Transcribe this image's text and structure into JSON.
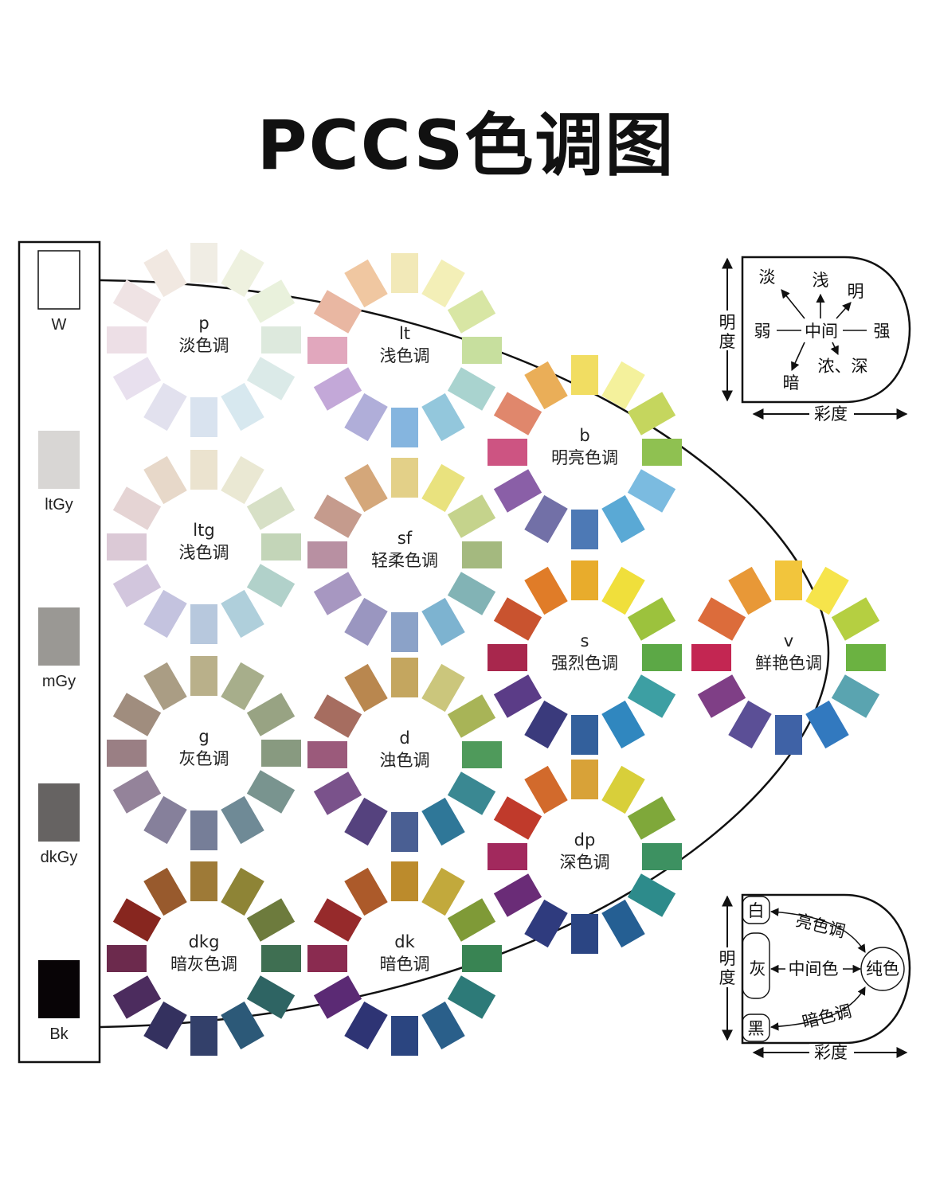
{
  "title": "PCCS色调图",
  "grayscale": [
    {
      "label": "W",
      "color": "#ffffff"
    },
    {
      "label": "ltGy",
      "color": "#d8d6d4"
    },
    {
      "label": "mGy",
      "color": "#9a9894"
    },
    {
      "label": "dkGy",
      "color": "#666362"
    },
    {
      "label": "Bk",
      "color": "#080406"
    }
  ],
  "tones": [
    {
      "code": "p",
      "name": "淡色调",
      "colors": [
        "#f0ede4",
        "#eef1df",
        "#e9f1dc",
        "#dde9dd",
        "#dbeae8",
        "#d7e8ef",
        "#d9e3ef",
        "#e2e1ee",
        "#e8e0ee",
        "#eddfe6",
        "#efe3e4",
        "#f1e8e1"
      ]
    },
    {
      "code": "lt",
      "name": "浅色调",
      "colors": [
        "#f2e9b8",
        "#f3efb7",
        "#d8e6a4",
        "#c7df9e",
        "#a9d3cf",
        "#93c7dc",
        "#85b5df",
        "#b0aed9",
        "#c3a8d8",
        "#e1a7bd",
        "#e9b7a2",
        "#f0c7a1"
      ]
    },
    {
      "code": "b",
      "name": "明亮色调",
      "colors": [
        "#f1dd62",
        "#f4f19c",
        "#c5d65e",
        "#8fc151",
        "#7bbbe0",
        "#5aa9d5",
        "#4d79b5",
        "#7270a7",
        "#8a5fa7",
        "#cd5482",
        "#e0876c",
        "#eaae58"
      ]
    },
    {
      "code": "ltg",
      "name": "浅色调",
      "colors": [
        "#ebe3cf",
        "#eae8d3",
        "#d7e0c6",
        "#c3d5b8",
        "#b1d1ca",
        "#afcfdb",
        "#b7c8dd",
        "#c4c3df",
        "#d2c6dd",
        "#dbc9d6",
        "#e5d4d4",
        "#e7d8c9"
      ]
    },
    {
      "code": "sf",
      "name": "轻柔色调",
      "colors": [
        "#e3d088",
        "#e9e27e",
        "#c5d38c",
        "#a4b97f",
        "#82b3b5",
        "#7db3d0",
        "#8ba2c8",
        "#9a96c0",
        "#a797c1",
        "#b890a2",
        "#c59b8d",
        "#d4a77a"
      ]
    },
    {
      "code": "s",
      "name": "强烈色调",
      "colors": [
        "#e8ac2c",
        "#f0df3b",
        "#9cc23d",
        "#5ca846",
        "#3d9fa3",
        "#3087bf",
        "#33609c",
        "#3a3a7c",
        "#5b3c87",
        "#a8274d",
        "#c9532f",
        "#e07c28"
      ]
    },
    {
      "code": "v",
      "name": "鲜艳色调",
      "colors": [
        "#f2c53c",
        "#f6e44b",
        "#b5cf41",
        "#6bb241",
        "#5aa4b0",
        "#3279bf",
        "#3f62a6",
        "#5b4f96",
        "#7f3f86",
        "#c32652",
        "#dc6c3b",
        "#e89837"
      ]
    },
    {
      "code": "g",
      "name": "灰色调",
      "colors": [
        "#b9b08a",
        "#a7ae8b",
        "#98a383",
        "#889a80",
        "#79948f",
        "#6f8a96",
        "#767e98",
        "#86809b",
        "#94839a",
        "#9a7f84",
        "#a08d7e",
        "#aa9d84"
      ]
    },
    {
      "code": "d",
      "name": "浊色调",
      "colors": [
        "#c4a65f",
        "#cbc67c",
        "#a8b457",
        "#4f9a5b",
        "#3a8892",
        "#2f7798",
        "#4a5f93",
        "#55427e",
        "#7a528b",
        "#9b5a7b",
        "#a66d60",
        "#b9874f"
      ]
    },
    {
      "code": "dp",
      "name": "深色调",
      "colors": [
        "#d8a238",
        "#d8cf3a",
        "#7fa83a",
        "#3d9161",
        "#2d8b8b",
        "#255f93",
        "#2b4583",
        "#2f3b7e",
        "#6a2c77",
        "#a2295d",
        "#c03a2b",
        "#d26a2c"
      ]
    },
    {
      "code": "dkg",
      "name": "暗灰色调",
      "colors": [
        "#9e7a37",
        "#8e8436",
        "#6d7b3d",
        "#3f6f52",
        "#2e6463",
        "#2c5978",
        "#33406a",
        "#34315f",
        "#4c2c5e",
        "#6c2a4d",
        "#87261f",
        "#985a2d"
      ]
    },
    {
      "code": "dk",
      "name": "暗色调",
      "colors": [
        "#bc8b2c",
        "#c2a93c",
        "#7f9a37",
        "#398453",
        "#2d7a78",
        "#2a5f8a",
        "#2b4580",
        "#2e3474",
        "#5b2a74",
        "#8a2b50",
        "#962a2b",
        "#ac5a2a"
      ]
    }
  ],
  "inset_top": {
    "axis_v": "明度",
    "axis_h": "彩度",
    "words": {
      "pale": "淡",
      "light": "浅",
      "bright": "明",
      "weak": "弱",
      "middle": "中间",
      "strong": "强",
      "dark": "暗",
      "deep": "浓、深"
    }
  },
  "inset_bottom": {
    "axis_v": "明度",
    "axis_h": "彩度",
    "words": {
      "white": "白",
      "gray": "灰",
      "black": "黑",
      "pure": "纯色",
      "light_tone": "亮色调",
      "middle_color": "中间色",
      "dark_tone": "暗色调"
    }
  }
}
